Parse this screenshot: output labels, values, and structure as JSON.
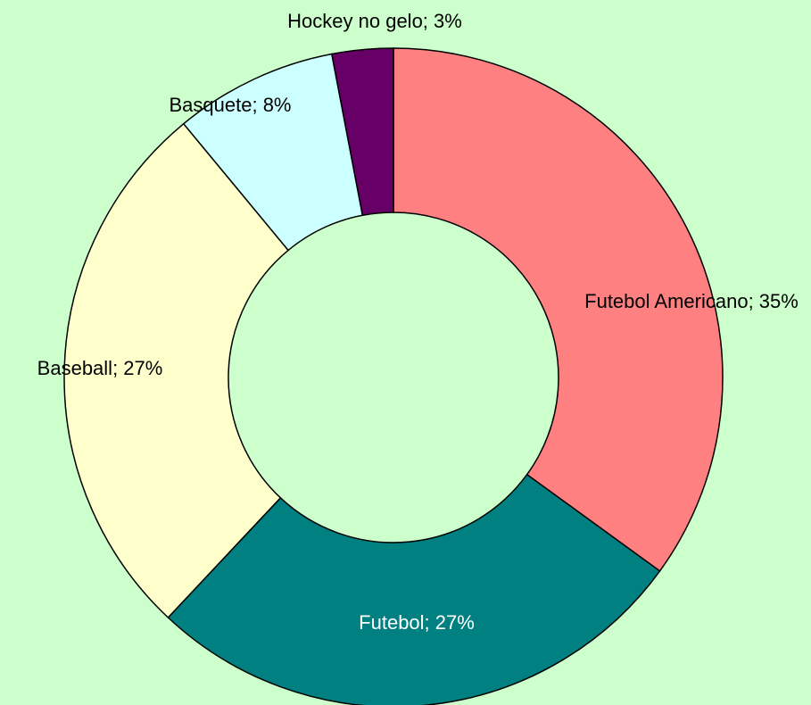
{
  "chart_data": {
    "type": "donut",
    "values": [
      35,
      27,
      27,
      8,
      3
    ],
    "value_labels": [
      "Futebol Americano; 35%",
      "Futebol; 27%",
      "Baseball; 27%",
      "Basquete; 8%",
      "Hockey no gelo; 3%"
    ],
    "colors": [
      "#ff8080",
      "#008080",
      "#ffffcc",
      "#ccffff",
      "#660066"
    ],
    "label_colors": [
      "#000000",
      "#ffffff",
      "#000000",
      "#000000",
      "#000000"
    ]
  }
}
